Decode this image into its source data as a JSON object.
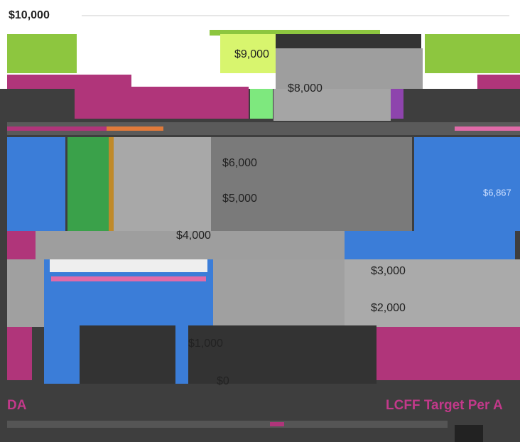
{
  "axis_labels": [
    "$10,000",
    "$9,000",
    "$8,000",
    "$6,000",
    "$5,000",
    "$4,000",
    "$3,000",
    "$2,000",
    "$1,000",
    "$0"
  ],
  "value_label": "$6,867",
  "title_fragment": "LCFF Target Per A",
  "left_fragment": "DA"
}
